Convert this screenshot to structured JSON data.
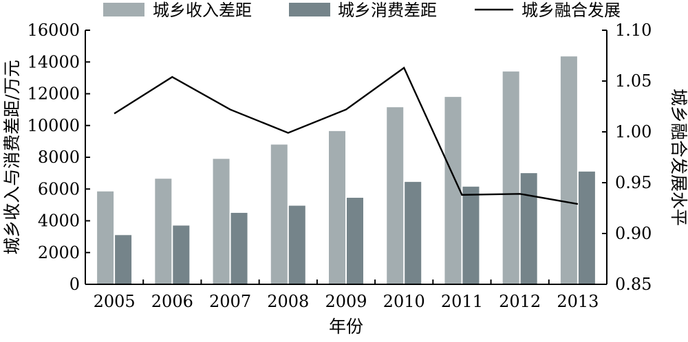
{
  "chart_data": {
    "type": "bar",
    "categories": [
      "2005",
      "2006",
      "2007",
      "2008",
      "2009",
      "2010",
      "2011",
      "2012",
      "2013"
    ],
    "series": [
      {
        "name": "城乡收入差距",
        "type": "bar",
        "axis": "left",
        "color": "#a3adb0",
        "values": [
          5850,
          6650,
          7900,
          8800,
          9650,
          11150,
          11800,
          13400,
          14350
        ]
      },
      {
        "name": "城乡消费差距",
        "type": "bar",
        "axis": "left",
        "color": "#75848a",
        "values": [
          3100,
          3700,
          4500,
          4950,
          5450,
          6450,
          6150,
          7000,
          7100
        ]
      },
      {
        "name": "城乡融合发展",
        "type": "line",
        "axis": "right",
        "color": "#000000",
        "values": [
          1.018,
          1.054,
          1.022,
          0.999,
          1.022,
          1.063,
          0.938,
          0.939,
          0.929
        ]
      }
    ],
    "xlabel": "年份",
    "ylabel": "城乡收入与消费差距/万元",
    "y2label": "城乡融合发展水平",
    "ylim": [
      0,
      16000
    ],
    "y2lim": [
      0.85,
      1.1
    ],
    "yticks": [
      "0",
      "2000",
      "4000",
      "6000",
      "8000",
      "10000",
      "12000",
      "14000",
      "16000"
    ],
    "y2ticks": [
      "0.85",
      "0.90",
      "0.95",
      "1.00",
      "1.05",
      "1.10"
    ],
    "legend_position": "top",
    "grid": false
  }
}
